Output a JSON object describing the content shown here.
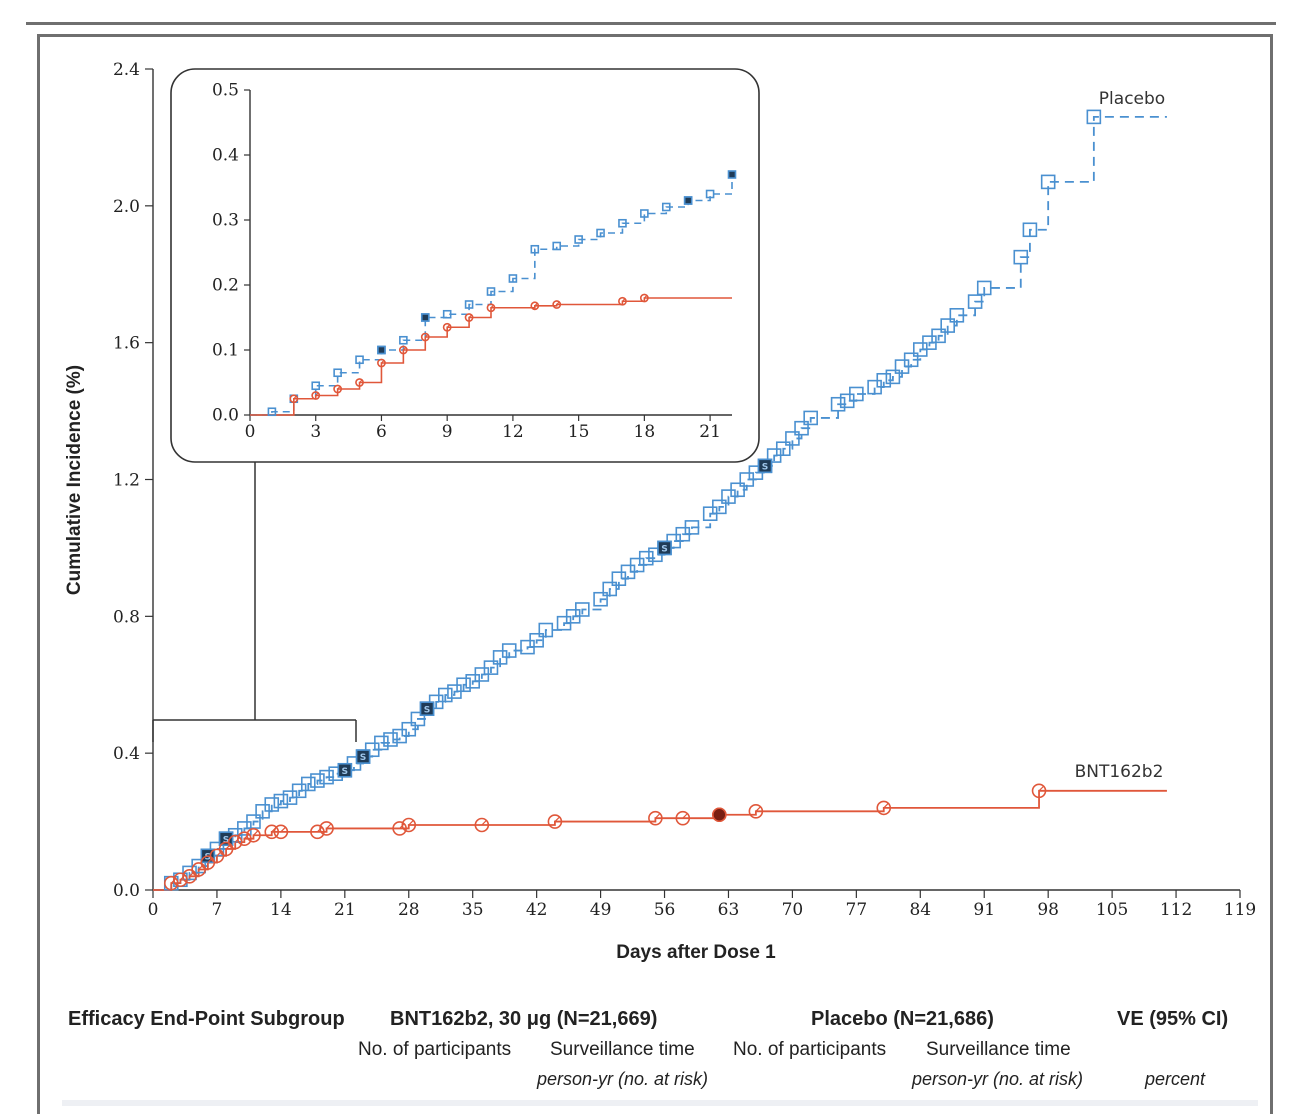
{
  "chart_data": {
    "type": "line",
    "xlabel": "Days after Dose 1",
    "ylabel": "Cumulative Incidence (%)",
    "xlim": [
      0,
      119
    ],
    "ylim": [
      0,
      2.4
    ],
    "x_ticks": [
      "0",
      "7",
      "14",
      "21",
      "28",
      "35",
      "42",
      "49",
      "56",
      "63",
      "70",
      "77",
      "84",
      "91",
      "98",
      "105",
      "112",
      "119"
    ],
    "y_ticks": [
      "0.0",
      "0.4",
      "0.8",
      "1.2",
      "1.6",
      "2.0",
      "2.4"
    ],
    "series": [
      {
        "name": "Placebo",
        "color": "#4a90d0",
        "line_style": "dashed",
        "marker": "open-square",
        "points": [
          [
            0,
            0
          ],
          [
            2,
            0.02
          ],
          [
            3,
            0.03
          ],
          [
            4,
            0.05
          ],
          [
            5,
            0.07
          ],
          [
            6,
            0.1
          ],
          [
            7,
            0.12
          ],
          [
            8,
            0.15
          ],
          [
            9,
            0.16
          ],
          [
            10,
            0.18
          ],
          [
            11,
            0.2
          ],
          [
            12,
            0.23
          ],
          [
            13,
            0.25
          ],
          [
            14,
            0.26
          ],
          [
            15,
            0.27
          ],
          [
            16,
            0.29
          ],
          [
            17,
            0.31
          ],
          [
            18,
            0.32
          ],
          [
            19,
            0.33
          ],
          [
            20,
            0.34
          ],
          [
            21,
            0.35
          ],
          [
            22,
            0.37
          ],
          [
            23,
            0.39
          ],
          [
            24,
            0.41
          ],
          [
            25,
            0.43
          ],
          [
            26,
            0.44
          ],
          [
            27,
            0.45
          ],
          [
            28,
            0.47
          ],
          [
            29,
            0.5
          ],
          [
            30,
            0.53
          ],
          [
            31,
            0.55
          ],
          [
            32,
            0.57
          ],
          [
            33,
            0.58
          ],
          [
            34,
            0.6
          ],
          [
            35,
            0.61
          ],
          [
            36,
            0.63
          ],
          [
            37,
            0.65
          ],
          [
            38,
            0.68
          ],
          [
            39,
            0.7
          ],
          [
            41,
            0.71
          ],
          [
            42,
            0.73
          ],
          [
            43,
            0.76
          ],
          [
            45,
            0.78
          ],
          [
            46,
            0.8
          ],
          [
            47,
            0.82
          ],
          [
            49,
            0.85
          ],
          [
            50,
            0.88
          ],
          [
            51,
            0.91
          ],
          [
            52,
            0.93
          ],
          [
            53,
            0.95
          ],
          [
            54,
            0.97
          ],
          [
            55,
            0.98
          ],
          [
            56,
            1.0
          ],
          [
            57,
            1.02
          ],
          [
            58,
            1.04
          ],
          [
            59,
            1.06
          ],
          [
            61,
            1.1
          ],
          [
            62,
            1.12
          ],
          [
            63,
            1.15
          ],
          [
            64,
            1.17
          ],
          [
            65,
            1.2
          ],
          [
            66,
            1.22
          ],
          [
            67,
            1.24
          ],
          [
            68,
            1.27
          ],
          [
            69,
            1.29
          ],
          [
            70,
            1.32
          ],
          [
            71,
            1.35
          ],
          [
            72,
            1.38
          ],
          [
            75,
            1.42
          ],
          [
            76,
            1.43
          ],
          [
            77,
            1.45
          ],
          [
            79,
            1.47
          ],
          [
            80,
            1.49
          ],
          [
            81,
            1.5
          ],
          [
            82,
            1.53
          ],
          [
            83,
            1.55
          ],
          [
            84,
            1.58
          ],
          [
            85,
            1.6
          ],
          [
            86,
            1.62
          ],
          [
            87,
            1.65
          ],
          [
            88,
            1.68
          ],
          [
            90,
            1.72
          ],
          [
            91,
            1.76
          ],
          [
            95,
            1.85
          ],
          [
            96,
            1.93
          ],
          [
            98,
            2.07
          ],
          [
            103,
            2.26
          ],
          [
            111,
            2.26
          ]
        ],
        "severe_case_days": [
          6,
          8,
          21,
          23,
          30,
          56,
          67
        ]
      },
      {
        "name": "BNT162b2",
        "color": "#e0573a",
        "line_style": "solid",
        "marker": "open-circle",
        "points": [
          [
            0,
            0
          ],
          [
            2,
            0.02
          ],
          [
            3,
            0.03
          ],
          [
            4,
            0.04
          ],
          [
            5,
            0.06
          ],
          [
            6,
            0.08
          ],
          [
            7,
            0.1
          ],
          [
            8,
            0.12
          ],
          [
            9,
            0.14
          ],
          [
            10,
            0.15
          ],
          [
            11,
            0.16
          ],
          [
            13,
            0.17
          ],
          [
            14,
            0.17
          ],
          [
            18,
            0.17
          ],
          [
            19,
            0.18
          ],
          [
            27,
            0.18
          ],
          [
            28,
            0.19
          ],
          [
            36,
            0.19
          ],
          [
            44,
            0.2
          ],
          [
            55,
            0.21
          ],
          [
            58,
            0.21
          ],
          [
            62,
            0.22
          ],
          [
            66,
            0.23
          ],
          [
            80,
            0.24
          ],
          [
            97,
            0.29
          ],
          [
            111,
            0.29
          ]
        ],
        "severe_case_days": [
          62
        ]
      }
    ],
    "inset": {
      "xlim": [
        0,
        22
      ],
      "ylim": [
        0,
        0.5
      ],
      "x_ticks": [
        "0",
        "3",
        "6",
        "9",
        "12",
        "15",
        "18",
        "21"
      ],
      "y_ticks": [
        "0.0",
        "0.1",
        "0.2",
        "0.3",
        "0.4",
        "0.5"
      ],
      "placebo_points": [
        [
          0,
          0
        ],
        [
          1,
          0.005
        ],
        [
          2,
          0.025
        ],
        [
          3,
          0.045
        ],
        [
          4,
          0.065
        ],
        [
          5,
          0.085
        ],
        [
          6,
          0.1
        ],
        [
          7,
          0.115
        ],
        [
          8,
          0.15
        ],
        [
          9,
          0.155
        ],
        [
          10,
          0.17
        ],
        [
          11,
          0.19
        ],
        [
          12,
          0.21
        ],
        [
          13,
          0.255
        ],
        [
          14,
          0.26
        ],
        [
          15,
          0.27
        ],
        [
          16,
          0.28
        ],
        [
          17,
          0.295
        ],
        [
          18,
          0.31
        ],
        [
          19,
          0.32
        ],
        [
          20,
          0.33
        ],
        [
          21,
          0.34
        ],
        [
          22,
          0.37
        ]
      ],
      "bnt_points": [
        [
          0,
          0
        ],
        [
          2,
          0.025
        ],
        [
          3,
          0.03
        ],
        [
          4,
          0.04
        ],
        [
          5,
          0.05
        ],
        [
          6,
          0.08
        ],
        [
          7,
          0.1
        ],
        [
          8,
          0.12
        ],
        [
          9,
          0.135
        ],
        [
          10,
          0.15
        ],
        [
          11,
          0.165
        ],
        [
          13,
          0.168
        ],
        [
          14,
          0.17
        ],
        [
          17,
          0.175
        ],
        [
          18,
          0.18
        ],
        [
          22,
          0.18
        ]
      ],
      "placebo_severe_days": [
        6,
        8,
        20,
        22
      ]
    }
  },
  "table_header": {
    "col1": "Efficacy End-Point Subgroup",
    "col2": "BNT162b2, 30 μg (N=21,669)",
    "col3": "Placebo (N=21,686)",
    "col4": "VE (95% CI)",
    "sub_participants_1": "No. of participants",
    "sub_surveillance_1": "Surveillance time",
    "sub_participants_2": "No. of participants",
    "sub_surveillance_2": "Surveillance time",
    "unit_1": "person-yr (no. at risk)",
    "unit_2": "person-yr (no. at risk)",
    "unit_3": "percent"
  },
  "severe_marker_letter": "S"
}
